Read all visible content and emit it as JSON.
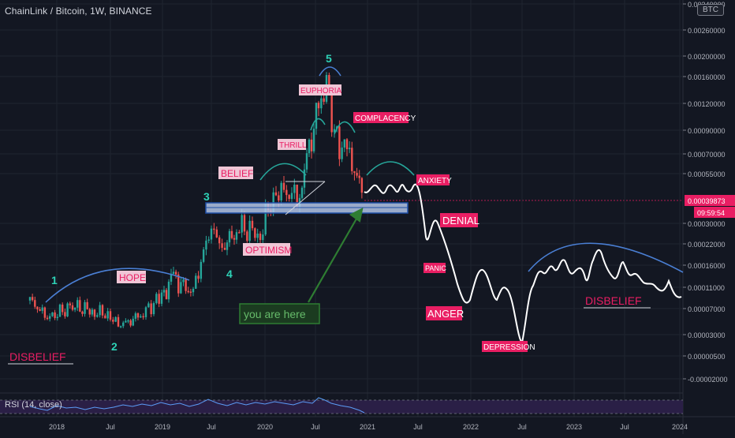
{
  "header": {
    "ticker": "ChainLink / Bitcoin, 1W, BINANCE",
    "currency_badge": "BTC"
  },
  "rsi": {
    "label": "RSI (14, close)"
  },
  "price_scale": {
    "ticks": [
      "0.00340000",
      "0.00260000",
      "0.00200000",
      "0.00160000",
      "0.00120000",
      "0.00090000",
      "0.00070000",
      "0.00055000",
      "0.00030000",
      "0.00022000",
      "0.00016000",
      "0.00011000",
      "0.00007000",
      "0.00003000",
      "0.00000500",
      "-0.00002000"
    ],
    "current_price": "0.00039873",
    "countdown": "09:59:54"
  },
  "time_axis": {
    "ticks": [
      "2018",
      "Jul",
      "2019",
      "Jul",
      "2020",
      "Jul",
      "2021",
      "Jul",
      "2022",
      "Jul",
      "2023",
      "Jul",
      "2024"
    ]
  },
  "annotations": {
    "waves": [
      "1",
      "2",
      "3",
      "4",
      "5"
    ],
    "labels": {
      "disbelief_left": "DISBELIEF",
      "hope": "HOPE",
      "optimism": "OPTIMISM",
      "belief": "BELIEF",
      "thrill": "THRILL",
      "euphoria": "EUPHORIA",
      "complacency": "COMPLACENCY",
      "anxiety": "ANXIETY",
      "denial": "DENIAL",
      "panic": "PANIC",
      "anger": "ANGER",
      "depression": "DEPRESSION",
      "disbelief_right": "DISBELIEF",
      "you_are_here": "you are here"
    }
  },
  "colors": {
    "background": "#131722",
    "grid": "#1f2430",
    "candle_up": "#26a69a",
    "candle_down": "#ef5350",
    "projection": "#ffffff",
    "arc": "#4a7fd4",
    "wave_number": "#2ed3b7",
    "label_pink": "#e91e63",
    "label_light": "#f0c6d6",
    "label_light_text": "#e91e63",
    "rsi_line": "#5b9cf6",
    "rsi_band": "#2a1f46",
    "arrow": "#2e7d32",
    "box_fill": "#b3c6e8",
    "box_border": "#1e4fa8"
  },
  "chart_data": {
    "type": "candlestick",
    "title": "ChainLink / Bitcoin, 1W, BINANCE",
    "x_axis": [
      "2018",
      "Jul",
      "2019",
      "Jul",
      "2020",
      "Jul",
      "2021",
      "Jul",
      "2022",
      "Jul",
      "2023",
      "Jul",
      "2024"
    ],
    "y_scale": "log",
    "ylim": [
      -2e-05,
      0.0034
    ],
    "current_price": 0.00039873,
    "candles": [
      {
        "date": "2017-11",
        "low": 5.6e-05,
        "close": 8.5e-05,
        "high": 0.00012
      },
      {
        "date": "2018-01",
        "low": 4.8e-05,
        "close": 5.5e-05,
        "high": 6.8e-05
      },
      {
        "date": "2018-03",
        "low": 6e-05,
        "close": 7.5e-05,
        "high": 9e-05
      },
      {
        "date": "2018-05",
        "low": 5.8e-05,
        "close": 6.6e-05,
        "high": 7.8e-05
      },
      {
        "date": "2018-07",
        "low": 5.2e-05,
        "close": 6e-05,
        "high": 7e-05
      },
      {
        "date": "2018-09",
        "low": 3.9e-05,
        "close": 4.5e-05,
        "high": 5.5e-05
      },
      {
        "date": "2018-11",
        "low": 4.3e-05,
        "close": 5.5e-05,
        "high": 6.8e-05
      },
      {
        "date": "2019-01",
        "low": 6.8e-05,
        "close": 9.2e-05,
        "high": 0.00011
      },
      {
        "date": "2019-03",
        "low": 0.0001,
        "close": 0.00013,
        "high": 0.00016
      },
      {
        "date": "2019-05",
        "low": 8.5e-05,
        "close": 9.8e-05,
        "high": 0.00012
      },
      {
        "date": "2019-07",
        "low": 0.00018,
        "close": 0.00027,
        "high": 0.00034
      },
      {
        "date": "2019-09",
        "low": 0.00017,
        "close": 0.00021,
        "high": 0.00026
      },
      {
        "date": "2019-11",
        "low": 0.00022,
        "close": 0.00029,
        "high": 0.00036
      },
      {
        "date": "2020-01",
        "low": 0.00023,
        "close": 0.00026,
        "high": 0.00032
      },
      {
        "date": "2020-03",
        "low": 0.0003,
        "close": 0.00046,
        "high": 0.00058
      },
      {
        "date": "2020-05",
        "low": 0.00036,
        "close": 0.00042,
        "high": 0.0005
      },
      {
        "date": "2020-07",
        "low": 0.00056,
        "close": 0.0011,
        "high": 0.00148
      },
      {
        "date": "2020-08",
        "low": 0.0009,
        "close": 0.00155,
        "high": 0.00165
      },
      {
        "date": "2020-09",
        "low": 0.00074,
        "close": 0.00085,
        "high": 0.0011
      },
      {
        "date": "2020-10",
        "low": 0.00062,
        "close": 0.00071,
        "high": 0.00082
      },
      {
        "date": "2020-11",
        "low": 0.00039,
        "close": 0.0004,
        "high": 0.00058
      }
    ],
    "projection": [
      {
        "date": "2021-01",
        "value": 0.00044
      },
      {
        "date": "2021-05",
        "value": 0.0004
      },
      {
        "date": "2021-09",
        "value": 0.00022
      },
      {
        "date": "2021-12",
        "value": 8.5e-05
      },
      {
        "date": "2022-03",
        "value": 0.00012
      },
      {
        "date": "2022-07",
        "value": 2e-05
      },
      {
        "date": "2022-08",
        "value": 0.00013
      },
      {
        "date": "2023-02",
        "value": 0.00017
      },
      {
        "date": "2023-06",
        "value": 0.00021
      },
      {
        "date": "2024-01",
        "value": 9e-05
      }
    ]
  }
}
